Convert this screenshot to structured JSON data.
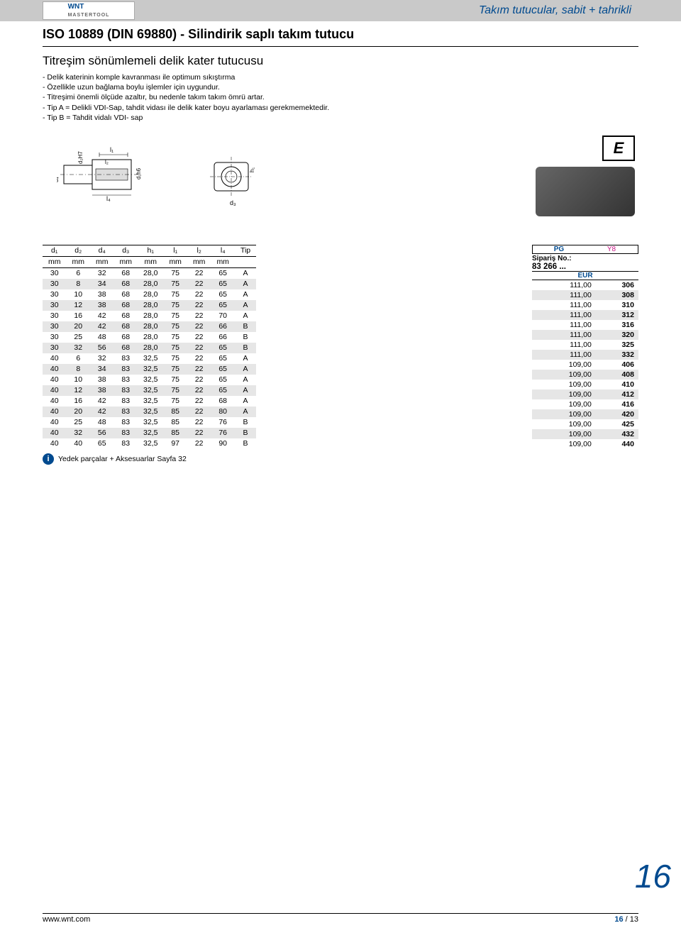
{
  "header": {
    "logo_main": "WNT",
    "logo_sub": "MASTERTOOL",
    "category": "Takım tutucular, sabit + tahrikli"
  },
  "title": "ISO 10889 (DIN 69880) - Silindirik saplı takım tutucu",
  "subtitle": "Titreşim sönümlemeli delik kater tutucusu",
  "bullets": [
    "- Delik katerinin komple kavranması ile optimum sıkıştırma",
    "- Özellikle uzun bağlama boylu işlemler için uygundur.",
    "- Titreşimi önemli ölçüde azaltır, bu nedenle takım takım ömrü artar.",
    "- Tip A = Delikli VDI-Sap, tahdit vidası ile delik kater boyu ayarlaması gerekmemektedir.",
    "- Tip B = Tahdit vidalı VDI- sap"
  ],
  "diagram_labels": {
    "l1": "l₁",
    "l2": "l₂",
    "l4": "l₄",
    "d1h6": "d₁h6",
    "d2H7": "d₂H7",
    "d4": "d₄",
    "d3": "d₃",
    "h1": "h₁"
  },
  "e_label": "E",
  "order": {
    "pg": "PG",
    "y8": "Y8",
    "siparis": "Sipariş No.:",
    "sku": "83 266 ...",
    "eur": "EUR"
  },
  "table": {
    "headers": [
      "d₁",
      "d₂",
      "d₄",
      "d₃",
      "h₁",
      "l₁",
      "l₂",
      "l₄",
      "Tip"
    ],
    "units": [
      "mm",
      "mm",
      "mm",
      "mm",
      "mm",
      "mm",
      "mm",
      "mm",
      ""
    ],
    "rows": [
      [
        "30",
        "6",
        "32",
        "68",
        "28,0",
        "75",
        "22",
        "65",
        "A"
      ],
      [
        "30",
        "8",
        "34",
        "68",
        "28,0",
        "75",
        "22",
        "65",
        "A"
      ],
      [
        "30",
        "10",
        "38",
        "68",
        "28,0",
        "75",
        "22",
        "65",
        "A"
      ],
      [
        "30",
        "12",
        "38",
        "68",
        "28,0",
        "75",
        "22",
        "65",
        "A"
      ],
      [
        "30",
        "16",
        "42",
        "68",
        "28,0",
        "75",
        "22",
        "70",
        "A"
      ],
      [
        "30",
        "20",
        "42",
        "68",
        "28,0",
        "75",
        "22",
        "66",
        "B"
      ],
      [
        "30",
        "25",
        "48",
        "68",
        "28,0",
        "75",
        "22",
        "66",
        "B"
      ],
      [
        "30",
        "32",
        "56",
        "68",
        "28,0",
        "75",
        "22",
        "65",
        "B"
      ],
      [
        "40",
        "6",
        "32",
        "83",
        "32,5",
        "75",
        "22",
        "65",
        "A"
      ],
      [
        "40",
        "8",
        "34",
        "83",
        "32,5",
        "75",
        "22",
        "65",
        "A"
      ],
      [
        "40",
        "10",
        "38",
        "83",
        "32,5",
        "75",
        "22",
        "65",
        "A"
      ],
      [
        "40",
        "12",
        "38",
        "83",
        "32,5",
        "75",
        "22",
        "65",
        "A"
      ],
      [
        "40",
        "16",
        "42",
        "83",
        "32,5",
        "75",
        "22",
        "68",
        "A"
      ],
      [
        "40",
        "20",
        "42",
        "83",
        "32,5",
        "85",
        "22",
        "80",
        "A"
      ],
      [
        "40",
        "25",
        "48",
        "83",
        "32,5",
        "85",
        "22",
        "76",
        "B"
      ],
      [
        "40",
        "32",
        "56",
        "83",
        "32,5",
        "85",
        "22",
        "76",
        "B"
      ],
      [
        "40",
        "40",
        "65",
        "83",
        "32,5",
        "97",
        "22",
        "90",
        "B"
      ]
    ],
    "prices": [
      [
        "111,00",
        "306"
      ],
      [
        "111,00",
        "308"
      ],
      [
        "111,00",
        "310"
      ],
      [
        "111,00",
        "312"
      ],
      [
        "111,00",
        "316"
      ],
      [
        "111,00",
        "320"
      ],
      [
        "111,00",
        "325"
      ],
      [
        "111,00",
        "332"
      ],
      [
        "109,00",
        "406"
      ],
      [
        "109,00",
        "408"
      ],
      [
        "109,00",
        "410"
      ],
      [
        "109,00",
        "412"
      ],
      [
        "109,00",
        "416"
      ],
      [
        "109,00",
        "420"
      ],
      [
        "109,00",
        "425"
      ],
      [
        "109,00",
        "432"
      ],
      [
        "109,00",
        "440"
      ]
    ]
  },
  "info_note": "Yedek parçalar + Aksesuarlar Sayfa 32",
  "big_page": "16",
  "footer": {
    "url": "www.wnt.com",
    "page_a": "16",
    "sep": " / ",
    "page_b": "13"
  },
  "style": {
    "stripe_bg": "#e6e6e6",
    "primary_blue": "#004a8f",
    "magenta": "#c71585"
  }
}
